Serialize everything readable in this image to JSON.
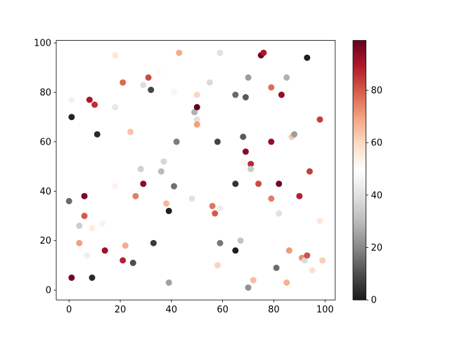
{
  "chart_data": {
    "type": "scatter",
    "title": "",
    "xlabel": "",
    "ylabel": "",
    "xlim": [
      -5,
      104
    ],
    "ylim": [
      -4,
      101
    ],
    "x_ticks": [
      0,
      20,
      40,
      60,
      80,
      100
    ],
    "y_ticks": [
      0,
      20,
      40,
      60,
      80,
      100
    ],
    "grid": false,
    "colormap": "RdGy_r",
    "colorbar": {
      "range": [
        0,
        99
      ],
      "ticks": [
        0,
        20,
        40,
        60,
        80
      ]
    },
    "points": [
      {
        "x": 1,
        "y": 77,
        "c": 45
      },
      {
        "x": 1,
        "y": 70,
        "c": 2
      },
      {
        "x": 0,
        "y": 36,
        "c": 15
      },
      {
        "x": 1,
        "y": 5,
        "c": 97
      },
      {
        "x": 4,
        "y": 26,
        "c": 35
      },
      {
        "x": 4,
        "y": 19,
        "c": 70
      },
      {
        "x": 6,
        "y": 38,
        "c": 96
      },
      {
        "x": 6,
        "y": 30,
        "c": 80
      },
      {
        "x": 7,
        "y": 14,
        "c": 44
      },
      {
        "x": 8,
        "y": 77,
        "c": 90
      },
      {
        "x": 9,
        "y": 25,
        "c": 55
      },
      {
        "x": 9,
        "y": 5,
        "c": 3
      },
      {
        "x": 10,
        "y": 75,
        "c": 86
      },
      {
        "x": 11,
        "y": 63,
        "c": 3
      },
      {
        "x": 13,
        "y": 27,
        "c": 46
      },
      {
        "x": 14,
        "y": 16,
        "c": 92
      },
      {
        "x": 18,
        "y": 95,
        "c": 56
      },
      {
        "x": 18,
        "y": 74,
        "c": 42
      },
      {
        "x": 18,
        "y": 42,
        "c": 53
      },
      {
        "x": 21,
        "y": 84,
        "c": 78
      },
      {
        "x": 21,
        "y": 12,
        "c": 88
      },
      {
        "x": 22,
        "y": 18,
        "c": 68
      },
      {
        "x": 24,
        "y": 64,
        "c": 64
      },
      {
        "x": 25,
        "y": 11,
        "c": 10
      },
      {
        "x": 26,
        "y": 38,
        "c": 75
      },
      {
        "x": 28,
        "y": 49,
        "c": 36
      },
      {
        "x": 29,
        "y": 83,
        "c": 39
      },
      {
        "x": 29,
        "y": 43,
        "c": 94
      },
      {
        "x": 31,
        "y": 86,
        "c": 82
      },
      {
        "x": 32,
        "y": 81,
        "c": 8
      },
      {
        "x": 33,
        "y": 19,
        "c": 6
      },
      {
        "x": 35,
        "y": 88,
        "c": 48
      },
      {
        "x": 36,
        "y": 48,
        "c": 30
      },
      {
        "x": 37,
        "y": 52,
        "c": 37
      },
      {
        "x": 38,
        "y": 35,
        "c": 66
      },
      {
        "x": 39,
        "y": 32,
        "c": 1
      },
      {
        "x": 39,
        "y": 3,
        "c": 25
      },
      {
        "x": 41,
        "y": 80,
        "c": 47
      },
      {
        "x": 41,
        "y": 42,
        "c": 16
      },
      {
        "x": 42,
        "y": 60,
        "c": 18
      },
      {
        "x": 43,
        "y": 96,
        "c": 68
      },
      {
        "x": 48,
        "y": 37,
        "c": 40
      },
      {
        "x": 49,
        "y": 72,
        "c": 28
      },
      {
        "x": 50,
        "y": 79,
        "c": 60
      },
      {
        "x": 50,
        "y": 74,
        "c": 99
      },
      {
        "x": 50,
        "y": 69,
        "c": 40
      },
      {
        "x": 50,
        "y": 67,
        "c": 70
      },
      {
        "x": 55,
        "y": 84,
        "c": 38
      },
      {
        "x": 56,
        "y": 34,
        "c": 76
      },
      {
        "x": 57,
        "y": 31,
        "c": 80
      },
      {
        "x": 58,
        "y": 60,
        "c": 8
      },
      {
        "x": 59,
        "y": 96,
        "c": 40
      },
      {
        "x": 59,
        "y": 19,
        "c": 17
      },
      {
        "x": 59,
        "y": 33,
        "c": 44
      },
      {
        "x": 58,
        "y": 10,
        "c": 61
      },
      {
        "x": 65,
        "y": 79,
        "c": 15
      },
      {
        "x": 65,
        "y": 43,
        "c": 5
      },
      {
        "x": 65,
        "y": 16,
        "c": 1
      },
      {
        "x": 67,
        "y": 20,
        "c": 32
      },
      {
        "x": 68,
        "y": 62,
        "c": 12
      },
      {
        "x": 68,
        "y": 52,
        "c": 52
      },
      {
        "x": 69,
        "y": 78,
        "c": 12
      },
      {
        "x": 69,
        "y": 56,
        "c": 95
      },
      {
        "x": 70,
        "y": 86,
        "c": 24
      },
      {
        "x": 70,
        "y": 1,
        "c": 22
      },
      {
        "x": 71,
        "y": 51,
        "c": 87
      },
      {
        "x": 71,
        "y": 49,
        "c": 34
      },
      {
        "x": 72,
        "y": 4,
        "c": 65
      },
      {
        "x": 74,
        "y": 43,
        "c": 82
      },
      {
        "x": 75,
        "y": 95,
        "c": 98
      },
      {
        "x": 76,
        "y": 96,
        "c": 90
      },
      {
        "x": 79,
        "y": 82,
        "c": 77
      },
      {
        "x": 79,
        "y": 60,
        "c": 93
      },
      {
        "x": 79,
        "y": 37,
        "c": 75
      },
      {
        "x": 81,
        "y": 9,
        "c": 15
      },
      {
        "x": 82,
        "y": 31,
        "c": 40
      },
      {
        "x": 82,
        "y": 43,
        "c": 97
      },
      {
        "x": 83,
        "y": 79,
        "c": 93
      },
      {
        "x": 85,
        "y": 86,
        "c": 28
      },
      {
        "x": 85,
        "y": 3,
        "c": 67
      },
      {
        "x": 86,
        "y": 16,
        "c": 71
      },
      {
        "x": 87,
        "y": 62,
        "c": 63
      },
      {
        "x": 88,
        "y": 63,
        "c": 24
      },
      {
        "x": 90,
        "y": 38,
        "c": 88
      },
      {
        "x": 91,
        "y": 13,
        "c": 73
      },
      {
        "x": 92,
        "y": 12,
        "c": 38
      },
      {
        "x": 93,
        "y": 14,
        "c": 81
      },
      {
        "x": 93,
        "y": 94,
        "c": 1
      },
      {
        "x": 94,
        "y": 48,
        "c": 84
      },
      {
        "x": 95,
        "y": 8,
        "c": 58
      },
      {
        "x": 98,
        "y": 69,
        "c": 84
      },
      {
        "x": 98,
        "y": 28,
        "c": 56
      },
      {
        "x": 99,
        "y": 12,
        "c": 62
      }
    ]
  }
}
